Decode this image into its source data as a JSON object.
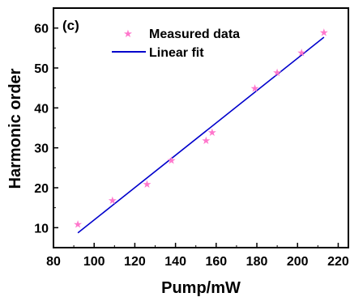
{
  "chart_data": {
    "type": "scatter",
    "panel_label": "(c)",
    "xlabel": "Pump/mW",
    "ylabel": "Harmonic order",
    "xlim": [
      80,
      225
    ],
    "ylim": [
      5,
      65
    ],
    "xticks": [
      80,
      100,
      120,
      140,
      160,
      180,
      200,
      220
    ],
    "yticks": [
      10,
      20,
      30,
      40,
      50,
      60
    ],
    "grid": false,
    "legend_position": "top-left",
    "series": [
      {
        "name": "Measured data",
        "kind": "markers",
        "marker": "star",
        "color": "#ff77cc",
        "x": [
          92,
          109,
          126,
          138,
          155,
          158,
          179,
          190,
          202,
          213
        ],
        "y": [
          11,
          17,
          21,
          27,
          32,
          34,
          45,
          49,
          54,
          59
        ]
      },
      {
        "name": "Linear fit",
        "kind": "line",
        "color": "#0000cc",
        "x": [
          92,
          213
        ],
        "y": [
          8.7,
          57.7
        ]
      }
    ]
  }
}
